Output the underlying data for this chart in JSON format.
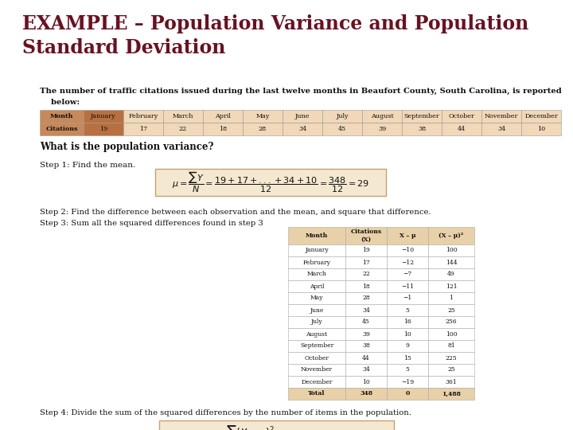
{
  "title_line1": "EXAMPLE – Population Variance and Population",
  "title_line2": "Standard Deviation",
  "title_color": "#6b1020",
  "bg_color": "#ffffff",
  "intro_text": "The number of traffic citations issued during the last twelve months in Beaufort County, South Carolina, is reported",
  "intro_text2": "    below:",
  "months": [
    "Month",
    "January",
    "February",
    "March",
    "April",
    "May",
    "June",
    "July",
    "August",
    "September",
    "October",
    "November",
    "December"
  ],
  "citations": [
    "Citations",
    "19",
    "17",
    "22",
    "18",
    "28",
    "34",
    "45",
    "39",
    "38",
    "44",
    "34",
    "10"
  ],
  "table_header_bg": "#c8895a",
  "table_jan_bg": "#b87040",
  "table_other_bg": "#f0d8b8",
  "table_border": "#999999",
  "question": "What is the population variance?",
  "step1_label": "Step 1: Find the mean.",
  "step2_text": "Step 2: Find the difference between each observation and the mean, and square that difference.",
  "step3_text": "Step 3: Sum all the squared differences found in step 3",
  "detail_months": [
    "January",
    "February",
    "March",
    "April",
    "May",
    "June",
    "July",
    "August",
    "September",
    "October",
    "November",
    "December",
    "Total"
  ],
  "detail_x": [
    "19",
    "17",
    "22",
    "18",
    "28",
    "34",
    "45",
    "39",
    "38",
    "44",
    "34",
    "10",
    "348"
  ],
  "detail_xmu": [
    "−10",
    "−12",
    "−7",
    "−11",
    "−1",
    "5",
    "16",
    "10",
    "9",
    "15",
    "5",
    "−19",
    "0"
  ],
  "detail_xmu2": [
    "100",
    "144",
    "49",
    "121",
    "1",
    "25",
    "256",
    "100",
    "81",
    "225",
    "25",
    "361",
    "1,488"
  ],
  "step4_text": "Step 4: Divide the sum of the squared differences by the number of items in the population.",
  "formula_box_bg": "#f5e8d0",
  "formula_box_border": "#c8a070",
  "detail_header_bg": "#e8d0a8",
  "detail_table_border": "#aaaaaa"
}
